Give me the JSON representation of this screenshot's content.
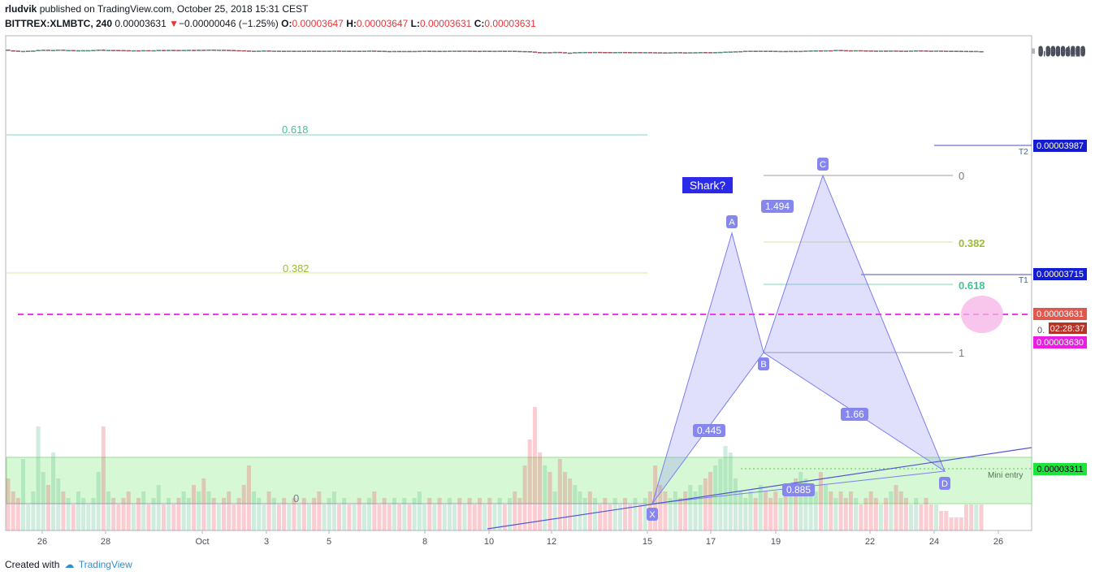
{
  "header": {
    "author": "rludvik",
    "published_text": "published on TradingView.com, October 25, 2018 15:31 CEST",
    "symbol": "BITTREX:XLMBTC, 240",
    "last": "0.00003631",
    "change_arrow": "▼",
    "change": "−0.00000046 (−1.25%)",
    "o_label": "O:",
    "o_value": "0.00003647",
    "h_label": "H:",
    "h_value": "0.00003647",
    "l_label": "L:",
    "l_value": "0.00003631",
    "c_label": "C:",
    "c_value": "0.00003631"
  },
  "footer": {
    "created_with": "Created with",
    "brand": "TradingView"
  },
  "colors": {
    "up": "#53b987",
    "down": "#eb4d5c",
    "pattern": "#7a7ef0",
    "dash": "#e83de0"
  },
  "chart_data": {
    "type": "candlestick",
    "ylim": [
      3.18e-05,
      4.23e-05
    ],
    "y_ticks": [
      "0.00004200",
      "0.00004150",
      "0.00004100",
      "0.00004050",
      "0.00003950",
      "0.00003900",
      "0.00003850",
      "0.00003800",
      "0.00003750",
      "0.00003700",
      "0.00003650",
      "0.00003540",
      "0.00003480",
      "0.00003420",
      "0.00003360",
      "0.00003260",
      "0.00003210"
    ],
    "x_ticks": [
      "26",
      "28",
      "Oct",
      "3",
      "5",
      "8",
      "10",
      "12",
      "15",
      "17",
      "19",
      "22",
      "24",
      "26"
    ],
    "price_tags": {
      "t2": "0.00003987",
      "t2_label": "T2",
      "t1": "0.00003715",
      "t1_label": "T1",
      "last": "0.00003631",
      "countdown": "02:28:37",
      "dash": "0.00003630",
      "mini_entry": "0.00003311",
      "mini_entry_label": "Mini entry",
      "partial_label": "0."
    },
    "left_fib": {
      "level_618": "0.618",
      "level_382": "0.382",
      "level_0": "0"
    },
    "right_fib": {
      "level_0": "0",
      "level_382": "0.382",
      "level_618": "0.618",
      "level_1": "1"
    },
    "pattern": {
      "title": "Shark?",
      "points": [
        {
          "name": "X",
          "value": 3.238e-05
        },
        {
          "name": "A",
          "value": 3.803e-05
        },
        {
          "name": "B",
          "value": 3.553e-05
        },
        {
          "name": "C",
          "value": 3.923e-05
        },
        {
          "name": "D",
          "value": 3.311e-05
        }
      ],
      "ratios": {
        "xb": "0.445",
        "ac": "1.494",
        "bd": "1.66",
        "xd": "0.885"
      }
    },
    "candles": [
      [
        3.96,
        3.82,
        3.99,
        3.8
      ],
      [
        3.82,
        3.75,
        3.87,
        3.72
      ],
      [
        3.75,
        3.64,
        3.78,
        3.62
      ],
      [
        3.64,
        3.68,
        3.7,
        3.62
      ],
      [
        3.68,
        3.72,
        3.75,
        3.66
      ],
      [
        3.72,
        3.76,
        3.79,
        3.7
      ],
      [
        3.76,
        3.88,
        3.95,
        3.75
      ],
      [
        3.88,
        3.94,
        3.98,
        3.85
      ],
      [
        3.94,
        3.78,
        3.96,
        3.76
      ],
      [
        3.78,
        3.9,
        3.95,
        3.77
      ],
      [
        3.9,
        3.96,
        3.98,
        3.88
      ],
      [
        3.96,
        3.85,
        3.97,
        3.82
      ],
      [
        3.85,
        3.87,
        3.9,
        3.81
      ],
      [
        3.87,
        3.76,
        3.88,
        3.74
      ],
      [
        3.76,
        3.84,
        3.86,
        3.75
      ],
      [
        3.84,
        3.85,
        3.88,
        3.82
      ],
      [
        3.85,
        3.85,
        3.87,
        3.83
      ],
      [
        3.85,
        3.88,
        3.91,
        3.84
      ],
      [
        3.88,
        3.95,
        4.0,
        3.87
      ],
      [
        3.95,
        3.89,
        4.07,
        3.88
      ],
      [
        3.89,
        3.9,
        3.92,
        3.87
      ],
      [
        3.9,
        3.88,
        3.91,
        3.86
      ],
      [
        3.88,
        3.87,
        3.89,
        3.85
      ],
      [
        3.87,
        3.85,
        3.88,
        3.8
      ],
      [
        3.85,
        3.79,
        3.87,
        3.78
      ],
      [
        3.79,
        3.83,
        3.85,
        3.78
      ],
      [
        3.83,
        3.8,
        3.84,
        3.78
      ],
      [
        3.8,
        3.85,
        3.88,
        3.79
      ],
      [
        3.85,
        3.83,
        3.86,
        3.8
      ],
      [
        3.83,
        3.84,
        3.88,
        3.82
      ],
      [
        3.84,
        3.89,
        3.93,
        3.83
      ],
      [
        3.89,
        3.88,
        3.91,
        3.86
      ],
      [
        3.88,
        3.91,
        3.93,
        3.87
      ],
      [
        3.91,
        3.88,
        3.93,
        3.85
      ],
      [
        3.88,
        3.86,
        3.9,
        3.84
      ],
      [
        3.86,
        3.89,
        3.92,
        3.85
      ],
      [
        3.89,
        3.92,
        3.97,
        3.88
      ],
      [
        3.92,
        3.91,
        3.95,
        3.89
      ],
      [
        3.91,
        3.94,
        3.99,
        3.9
      ],
      [
        3.94,
        3.92,
        3.95,
        3.88
      ],
      [
        3.92,
        3.97,
        4.01,
        3.9
      ],
      [
        3.97,
        3.93,
        3.98,
        3.91
      ],
      [
        3.93,
        3.94,
        3.96,
        3.9
      ],
      [
        3.94,
        3.92,
        3.95,
        3.89
      ],
      [
        3.92,
        3.88,
        3.94,
        3.86
      ],
      [
        3.88,
        3.85,
        3.89,
        3.84
      ],
      [
        3.85,
        3.83,
        3.86,
        3.8
      ],
      [
        3.83,
        3.77,
        3.84,
        3.75
      ],
      [
        3.77,
        3.68,
        3.79,
        3.66
      ],
      [
        3.68,
        3.71,
        3.73,
        3.67
      ],
      [
        3.71,
        3.74,
        3.76,
        3.7
      ],
      [
        3.74,
        3.78,
        3.8,
        3.72
      ],
      [
        3.78,
        3.7,
        3.79,
        3.69
      ],
      [
        3.7,
        3.74,
        3.76,
        3.69
      ],
      [
        3.74,
        3.72,
        3.75,
        3.7
      ],
      [
        3.72,
        3.7,
        3.74,
        3.69
      ],
      [
        3.7,
        3.73,
        3.76,
        3.69
      ],
      [
        3.73,
        3.71,
        3.74,
        3.7
      ],
      [
        3.71,
        3.72,
        3.75,
        3.7
      ],
      [
        3.72,
        3.71,
        3.73,
        3.69
      ],
      [
        3.71,
        3.74,
        3.76,
        3.7
      ],
      [
        3.74,
        3.73,
        3.75,
        3.71
      ],
      [
        3.73,
        3.68,
        3.74,
        3.67
      ],
      [
        3.68,
        3.71,
        3.73,
        3.67
      ],
      [
        3.71,
        3.73,
        3.76,
        3.7
      ],
      [
        3.73,
        3.75,
        3.78,
        3.72
      ],
      [
        3.75,
        3.71,
        3.76,
        3.7
      ],
      [
        3.71,
        3.72,
        3.73,
        3.7
      ],
      [
        3.72,
        3.7,
        3.73,
        3.69
      ],
      [
        3.7,
        3.72,
        3.74,
        3.69
      ],
      [
        3.72,
        3.71,
        3.73,
        3.69
      ],
      [
        3.71,
        3.73,
        3.75,
        3.7
      ],
      [
        3.73,
        3.76,
        3.77,
        3.72
      ],
      [
        3.76,
        3.73,
        3.77,
        3.71
      ],
      [
        3.73,
        3.7,
        3.74,
        3.68
      ],
      [
        3.7,
        3.67,
        3.71,
        3.65
      ],
      [
        3.67,
        3.65,
        3.69,
        3.64
      ],
      [
        3.65,
        3.68,
        3.7,
        3.64
      ],
      [
        3.68,
        3.66,
        3.7,
        3.64
      ],
      [
        3.66,
        3.68,
        3.69,
        3.65
      ],
      [
        3.68,
        3.65,
        3.69,
        3.64
      ],
      [
        3.65,
        3.68,
        3.7,
        3.64
      ],
      [
        3.68,
        3.7,
        3.72,
        3.67
      ],
      [
        3.7,
        3.73,
        3.74,
        3.69
      ],
      [
        3.73,
        3.69,
        3.74,
        3.68
      ],
      [
        3.69,
        3.7,
        3.72,
        3.68
      ],
      [
        3.7,
        3.68,
        3.71,
        3.67
      ],
      [
        3.68,
        3.7,
        3.73,
        3.67
      ],
      [
        3.7,
        3.73,
        3.74,
        3.69
      ],
      [
        3.73,
        3.74,
        3.76,
        3.72
      ],
      [
        3.74,
        3.71,
        3.75,
        3.7
      ],
      [
        3.71,
        3.74,
        3.76,
        3.7
      ],
      [
        3.74,
        3.72,
        3.75,
        3.7
      ],
      [
        3.72,
        3.7,
        3.73,
        3.68
      ],
      [
        3.7,
        3.69,
        3.72,
        3.68
      ],
      [
        3.69,
        3.71,
        3.73,
        3.68
      ],
      [
        3.71,
        3.69,
        3.72,
        3.68
      ],
      [
        3.69,
        3.7,
        3.72,
        3.67
      ],
      [
        3.7,
        3.72,
        3.74,
        3.69
      ],
      [
        3.72,
        3.7,
        3.73,
        3.69
      ],
      [
        3.7,
        3.71,
        3.72,
        3.69
      ],
      [
        3.71,
        3.68,
        3.72,
        3.67
      ],
      [
        3.68,
        3.66,
        3.7,
        3.65
      ],
      [
        3.66,
        3.64,
        3.67,
        3.63
      ],
      [
        3.64,
        3.56,
        3.65,
        3.54
      ],
      [
        3.56,
        3.45,
        3.57,
        3.44
      ],
      [
        3.45,
        3.4,
        3.48,
        3.32
      ],
      [
        3.4,
        3.42,
        3.44,
        3.38
      ],
      [
        3.42,
        3.38,
        3.43,
        3.36
      ],
      [
        3.38,
        3.48,
        3.53,
        3.37
      ],
      [
        3.48,
        3.41,
        3.5,
        3.39
      ],
      [
        3.41,
        3.32,
        3.43,
        3.3
      ],
      [
        3.32,
        3.3,
        3.34,
        3.29
      ],
      [
        3.3,
        3.41,
        3.43,
        3.29
      ],
      [
        3.41,
        3.46,
        3.48,
        3.4
      ],
      [
        3.46,
        3.47,
        3.49,
        3.44
      ],
      [
        3.47,
        3.46,
        3.48,
        3.44
      ],
      [
        3.46,
        3.48,
        3.5,
        3.45
      ],
      [
        3.48,
        3.46,
        3.49,
        3.44
      ],
      [
        3.46,
        3.45,
        3.48,
        3.43
      ],
      [
        3.45,
        3.44,
        3.46,
        3.43
      ],
      [
        3.44,
        3.45,
        3.47,
        3.43
      ],
      [
        3.45,
        3.47,
        3.49,
        3.44
      ],
      [
        3.47,
        3.45,
        3.48,
        3.43
      ],
      [
        3.45,
        3.43,
        3.46,
        3.42
      ],
      [
        3.43,
        3.44,
        3.45,
        3.42
      ],
      [
        3.44,
        3.42,
        3.45,
        3.41
      ],
      [
        3.42,
        3.43,
        3.44,
        3.41
      ],
      [
        3.43,
        3.41,
        3.44,
        3.4
      ],
      [
        3.41,
        3.4,
        3.42,
        3.39
      ],
      [
        3.4,
        3.38,
        3.41,
        3.37
      ],
      [
        3.38,
        3.35,
        3.39,
        3.33
      ],
      [
        3.35,
        3.39,
        3.41,
        3.34
      ],
      [
        3.39,
        3.42,
        3.45,
        3.38
      ],
      [
        3.42,
        3.39,
        3.44,
        3.36
      ],
      [
        3.39,
        3.38,
        3.4,
        3.36
      ],
      [
        3.38,
        3.4,
        3.42,
        3.37
      ],
      [
        3.4,
        3.41,
        3.43,
        3.39
      ],
      [
        3.41,
        3.44,
        3.46,
        3.4
      ],
      [
        3.44,
        3.43,
        3.45,
        3.42
      ],
      [
        3.43,
        3.42,
        3.44,
        3.4
      ],
      [
        3.42,
        3.44,
        3.46,
        3.41
      ],
      [
        3.44,
        3.48,
        3.5,
        3.43
      ],
      [
        3.48,
        3.52,
        3.54,
        3.47
      ],
      [
        3.52,
        3.56,
        3.58,
        3.51
      ],
      [
        3.56,
        3.6,
        3.62,
        3.55
      ],
      [
        3.6,
        3.65,
        3.69,
        3.59
      ],
      [
        3.65,
        3.7,
        3.74,
        3.64
      ],
      [
        3.7,
        3.72,
        3.78,
        3.69
      ],
      [
        3.72,
        3.7,
        3.74,
        3.68
      ],
      [
        3.7,
        3.72,
        3.73,
        3.69
      ],
      [
        3.72,
        3.71,
        3.74,
        3.7
      ],
      [
        3.71,
        3.7,
        3.73,
        3.69
      ],
      [
        3.7,
        3.64,
        3.71,
        3.63
      ],
      [
        3.64,
        3.68,
        3.7,
        3.6
      ],
      [
        3.68,
        3.66,
        3.69,
        3.63
      ],
      [
        3.66,
        3.69,
        3.7,
        3.65
      ],
      [
        3.69,
        3.64,
        3.7,
        3.63
      ],
      [
        3.64,
        3.69,
        3.71,
        3.63
      ],
      [
        3.69,
        3.75,
        3.77,
        3.68
      ],
      [
        3.75,
        3.78,
        3.8,
        3.74
      ],
      [
        3.78,
        3.81,
        3.83,
        3.77
      ],
      [
        3.81,
        3.8,
        3.85,
        3.79
      ],
      [
        3.8,
        3.83,
        3.84,
        3.79
      ],
      [
        3.83,
        3.81,
        3.84,
        3.8
      ],
      [
        3.81,
        3.9,
        3.92,
        3.8
      ],
      [
        3.9,
        3.85,
        3.91,
        3.83
      ],
      [
        3.85,
        3.83,
        3.87,
        3.8
      ],
      [
        3.83,
        3.82,
        3.85,
        3.8
      ],
      [
        3.82,
        3.84,
        3.86,
        3.81
      ],
      [
        3.84,
        3.8,
        3.85,
        3.79
      ],
      [
        3.8,
        3.78,
        3.83,
        3.77
      ],
      [
        3.78,
        3.76,
        3.79,
        3.75
      ],
      [
        3.76,
        3.74,
        3.78,
        3.73
      ],
      [
        3.74,
        3.76,
        3.78,
        3.73
      ],
      [
        3.76,
        3.75,
        3.79,
        3.74
      ],
      [
        3.75,
        3.77,
        3.79,
        3.74
      ],
      [
        3.77,
        3.75,
        3.78,
        3.73
      ],
      [
        3.75,
        3.74,
        3.76,
        3.72
      ],
      [
        3.74,
        3.72,
        3.75,
        3.71
      ],
      [
        3.72,
        3.76,
        3.8,
        3.71
      ],
      [
        3.76,
        3.8,
        3.85,
        3.75
      ],
      [
        3.8,
        3.78,
        3.83,
        3.76
      ],
      [
        3.78,
        3.75,
        3.79,
        3.74
      ],
      [
        3.75,
        3.73,
        3.76,
        3.72
      ],
      [
        3.73,
        3.76,
        3.77,
        3.72
      ],
      [
        3.76,
        3.74,
        3.77,
        3.73
      ],
      [
        3.74,
        3.72,
        3.75,
        3.7
      ],
      [
        3.72,
        3.71,
        3.74,
        3.69
      ],
      [
        3.71,
        3.7,
        3.72,
        3.68
      ],
      [
        3.7,
        3.69,
        3.71,
        3.67
      ],
      [
        3.69,
        3.68,
        3.7,
        3.66
      ],
      [
        3.68,
        3.67,
        3.69,
        3.65
      ],
      [
        3.67,
        3.68,
        3.69,
        3.66
      ],
      [
        3.647,
        3.631,
        3.647,
        3.631
      ]
    ],
    "volumes": [
      0.4,
      0.3,
      0.25,
      0.55,
      0.2,
      0.3,
      0.8,
      0.45,
      0.35,
      0.6,
      0.4,
      0.3,
      0.25,
      0.2,
      0.3,
      0.25,
      0.2,
      0.25,
      0.45,
      0.8,
      0.3,
      0.25,
      0.2,
      0.25,
      0.3,
      0.2,
      0.25,
      0.3,
      0.2,
      0.25,
      0.35,
      0.2,
      0.25,
      0.2,
      0.25,
      0.3,
      0.25,
      0.35,
      0.3,
      0.4,
      0.3,
      0.25,
      0.2,
      0.25,
      0.3,
      0.2,
      0.25,
      0.35,
      0.5,
      0.3,
      0.25,
      0.2,
      0.3,
      0.25,
      0.2,
      0.25,
      0.2,
      0.25,
      0.2,
      0.25,
      0.2,
      0.25,
      0.3,
      0.2,
      0.25,
      0.3,
      0.2,
      0.25,
      0.2,
      0.2,
      0.25,
      0.2,
      0.25,
      0.3,
      0.2,
      0.25,
      0.2,
      0.25,
      0.2,
      0.25,
      0.2,
      0.25,
      0.3,
      0.2,
      0.25,
      0.2,
      0.25,
      0.2,
      0.25,
      0.2,
      0.25,
      0.2,
      0.25,
      0.2,
      0.25,
      0.2,
      0.25,
      0.2,
      0.25,
      0.2,
      0.25,
      0.3,
      0.25,
      0.5,
      0.7,
      0.95,
      0.6,
      0.5,
      0.45,
      0.3,
      0.55,
      0.45,
      0.4,
      0.35,
      0.3,
      0.25,
      0.3,
      0.25,
      0.2,
      0.25,
      0.2,
      0.25,
      0.2,
      0.25,
      0.2,
      0.25,
      0.2,
      0.25,
      0.3,
      0.5,
      0.35,
      0.3,
      0.25,
      0.3,
      0.25,
      0.3,
      0.35,
      0.3,
      0.35,
      0.4,
      0.45,
      0.5,
      0.55,
      0.65,
      0.6,
      0.4,
      0.3,
      0.25,
      0.3,
      0.25,
      0.35,
      0.3,
      0.25,
      0.3,
      0.25,
      0.3,
      0.35,
      0.4,
      0.45,
      0.4,
      0.35,
      0.3,
      0.45,
      0.35,
      0.3,
      0.25,
      0.3,
      0.25,
      0.3,
      0.25,
      0.2,
      0.25,
      0.3,
      0.25,
      0.2,
      0.25,
      0.3,
      0.35,
      0.3,
      0.25,
      0.2,
      0.25,
      0.2,
      0.25,
      0.2,
      0.2,
      0.15,
      0.15,
      0.1,
      0.1,
      0.1
    ]
  }
}
